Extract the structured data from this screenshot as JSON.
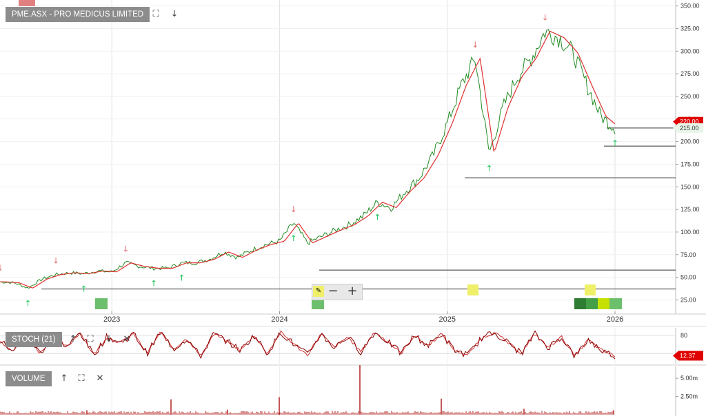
{
  "price_panel": {
    "title": "PME.ASX - PRO MEDICUS LIMITED",
    "toolbar": {
      "maximize_icon": "expand-icon",
      "move_down_icon": "arrow-down-icon"
    },
    "current_price_label": "215.00",
    "hidden_price_label": "220.00",
    "ymin": 20,
    "ymax": 352,
    "yticks": [
      350,
      325,
      300,
      275,
      250,
      225,
      200,
      175,
      150,
      125,
      100,
      75,
      50,
      25
    ],
    "ytick_labels": [
      "350.00",
      "325.00",
      "300.00",
      "275.00",
      "250.00",
      "225.00",
      "200.00",
      "175.00",
      "150.00",
      "125.00",
      "100.00",
      "75.00",
      "50.00",
      "25.00"
    ],
    "xlabels": [
      "2023",
      "2024",
      "2025",
      "2026"
    ]
  },
  "stoch_panel": {
    "title": "STOCH (21)",
    "ymin": 0,
    "ymax": 100,
    "yticks": [
      80
    ],
    "ytick_labels": [
      "80"
    ],
    "current_label": "12.37",
    "toolbar": {
      "up_icon": "arrow-up-icon",
      "maximize_icon": "expand-icon",
      "down_icon": "arrow-down-icon",
      "close_icon": "close-icon"
    }
  },
  "volume_panel": {
    "title": "VOLUME",
    "ymin": 0,
    "ymax": 7.0,
    "yticks": [
      5.0,
      2.5
    ],
    "ytick_labels": [
      "5.00m",
      "2.50m"
    ],
    "toolbar": {
      "up_icon": "arrow-up-icon",
      "maximize_icon": "expand-icon",
      "close_icon": "close-icon"
    }
  },
  "colors": {
    "price_line": "#228b22",
    "ma_line": "#e03030",
    "stoch_k": "#8b0000",
    "stoch_d": "#cc3333",
    "volume": "#b22222",
    "up_arrow": "#22c55e",
    "down_arrow": "#e57373",
    "label_red": "#e00000",
    "label_green": "#3a8a3a",
    "badge_green": "#5cb85c",
    "badge_yellow": "#f0ef6a"
  },
  "chart_data": [
    {
      "type": "line",
      "title": "PME.ASX - PRO MEDICUS LIMITED",
      "x": [
        "2022-05",
        "2022-06",
        "2022-07",
        "2022-08",
        "2022-09",
        "2022-10",
        "2022-11",
        "2022-12",
        "2023-01",
        "2023-02",
        "2023-03",
        "2023-04",
        "2023-05",
        "2023-06",
        "2023-07",
        "2023-08",
        "2023-09",
        "2023-10",
        "2023-11",
        "2023-12",
        "2024-01",
        "2024-02",
        "2024-03",
        "2024-04",
        "2024-05",
        "2024-06",
        "2024-07",
        "2024-08",
        "2024-09",
        "2024-10",
        "2024-11",
        "2024-12",
        "2025-01",
        "2025-02",
        "2025-03",
        "2025-04",
        "2025-05",
        "2025-06",
        "2025-07",
        "2025-08",
        "2025-09",
        "2025-10",
        "2025-11",
        "2025-12",
        "2026-01"
      ],
      "series": [
        {
          "name": "",
          "values": [
            45,
            44,
            38,
            48,
            53,
            55,
            54,
            57,
            56,
            66,
            62,
            60,
            60,
            66,
            66,
            70,
            78,
            72,
            80,
            86,
            90,
            110,
            88,
            95,
            102,
            108,
            118,
            133,
            127,
            145,
            160,
            185,
            220,
            262,
            292,
            187,
            238,
            272,
            292,
            322,
            315,
            298,
            262,
            228,
            215
          ]
        }
      ],
      "ylim": [
        20,
        352
      ],
      "annotations": {
        "down_arrows": [
          "2022-05",
          "2022-09",
          "2023-02",
          "2024-02",
          "2025-03",
          "2025-08"
        ],
        "up_arrows": [
          "2022-07",
          "2022-11",
          "2023-04",
          "2023-06",
          "2024-02",
          "2024-08",
          "2025-04",
          "2026-01"
        ],
        "horizontal_lines": [
          215,
          195,
          160,
          58,
          37
        ]
      }
    },
    {
      "type": "line",
      "title": "STOCH (21)",
      "series": [
        {
          "name": "",
          "values": [
            60,
            30,
            85,
            20,
            80,
            40,
            90,
            15,
            75,
            55,
            85,
            20,
            90,
            35,
            70,
            10,
            85,
            60,
            30,
            80,
            20,
            90,
            50,
            15,
            85,
            40,
            75,
            25,
            90,
            60,
            20,
            80,
            45,
            85,
            30,
            15,
            70,
            90,
            55,
            20,
            85,
            40,
            75,
            10,
            65,
            30,
            12
          ]
        }
      ],
      "ylim": [
        0,
        100
      ]
    },
    {
      "type": "bar",
      "title": "VOLUME",
      "series": [
        {
          "name": "",
          "values": [
            0.3,
            0.4,
            2.1,
            0.3,
            0.5,
            2.4,
            0.4,
            0.6,
            6.8,
            0.5,
            2.2,
            0.4,
            0.3,
            1.6,
            0.3
          ]
        }
      ],
      "ylim": [
        0,
        7.0
      ]
    }
  ]
}
